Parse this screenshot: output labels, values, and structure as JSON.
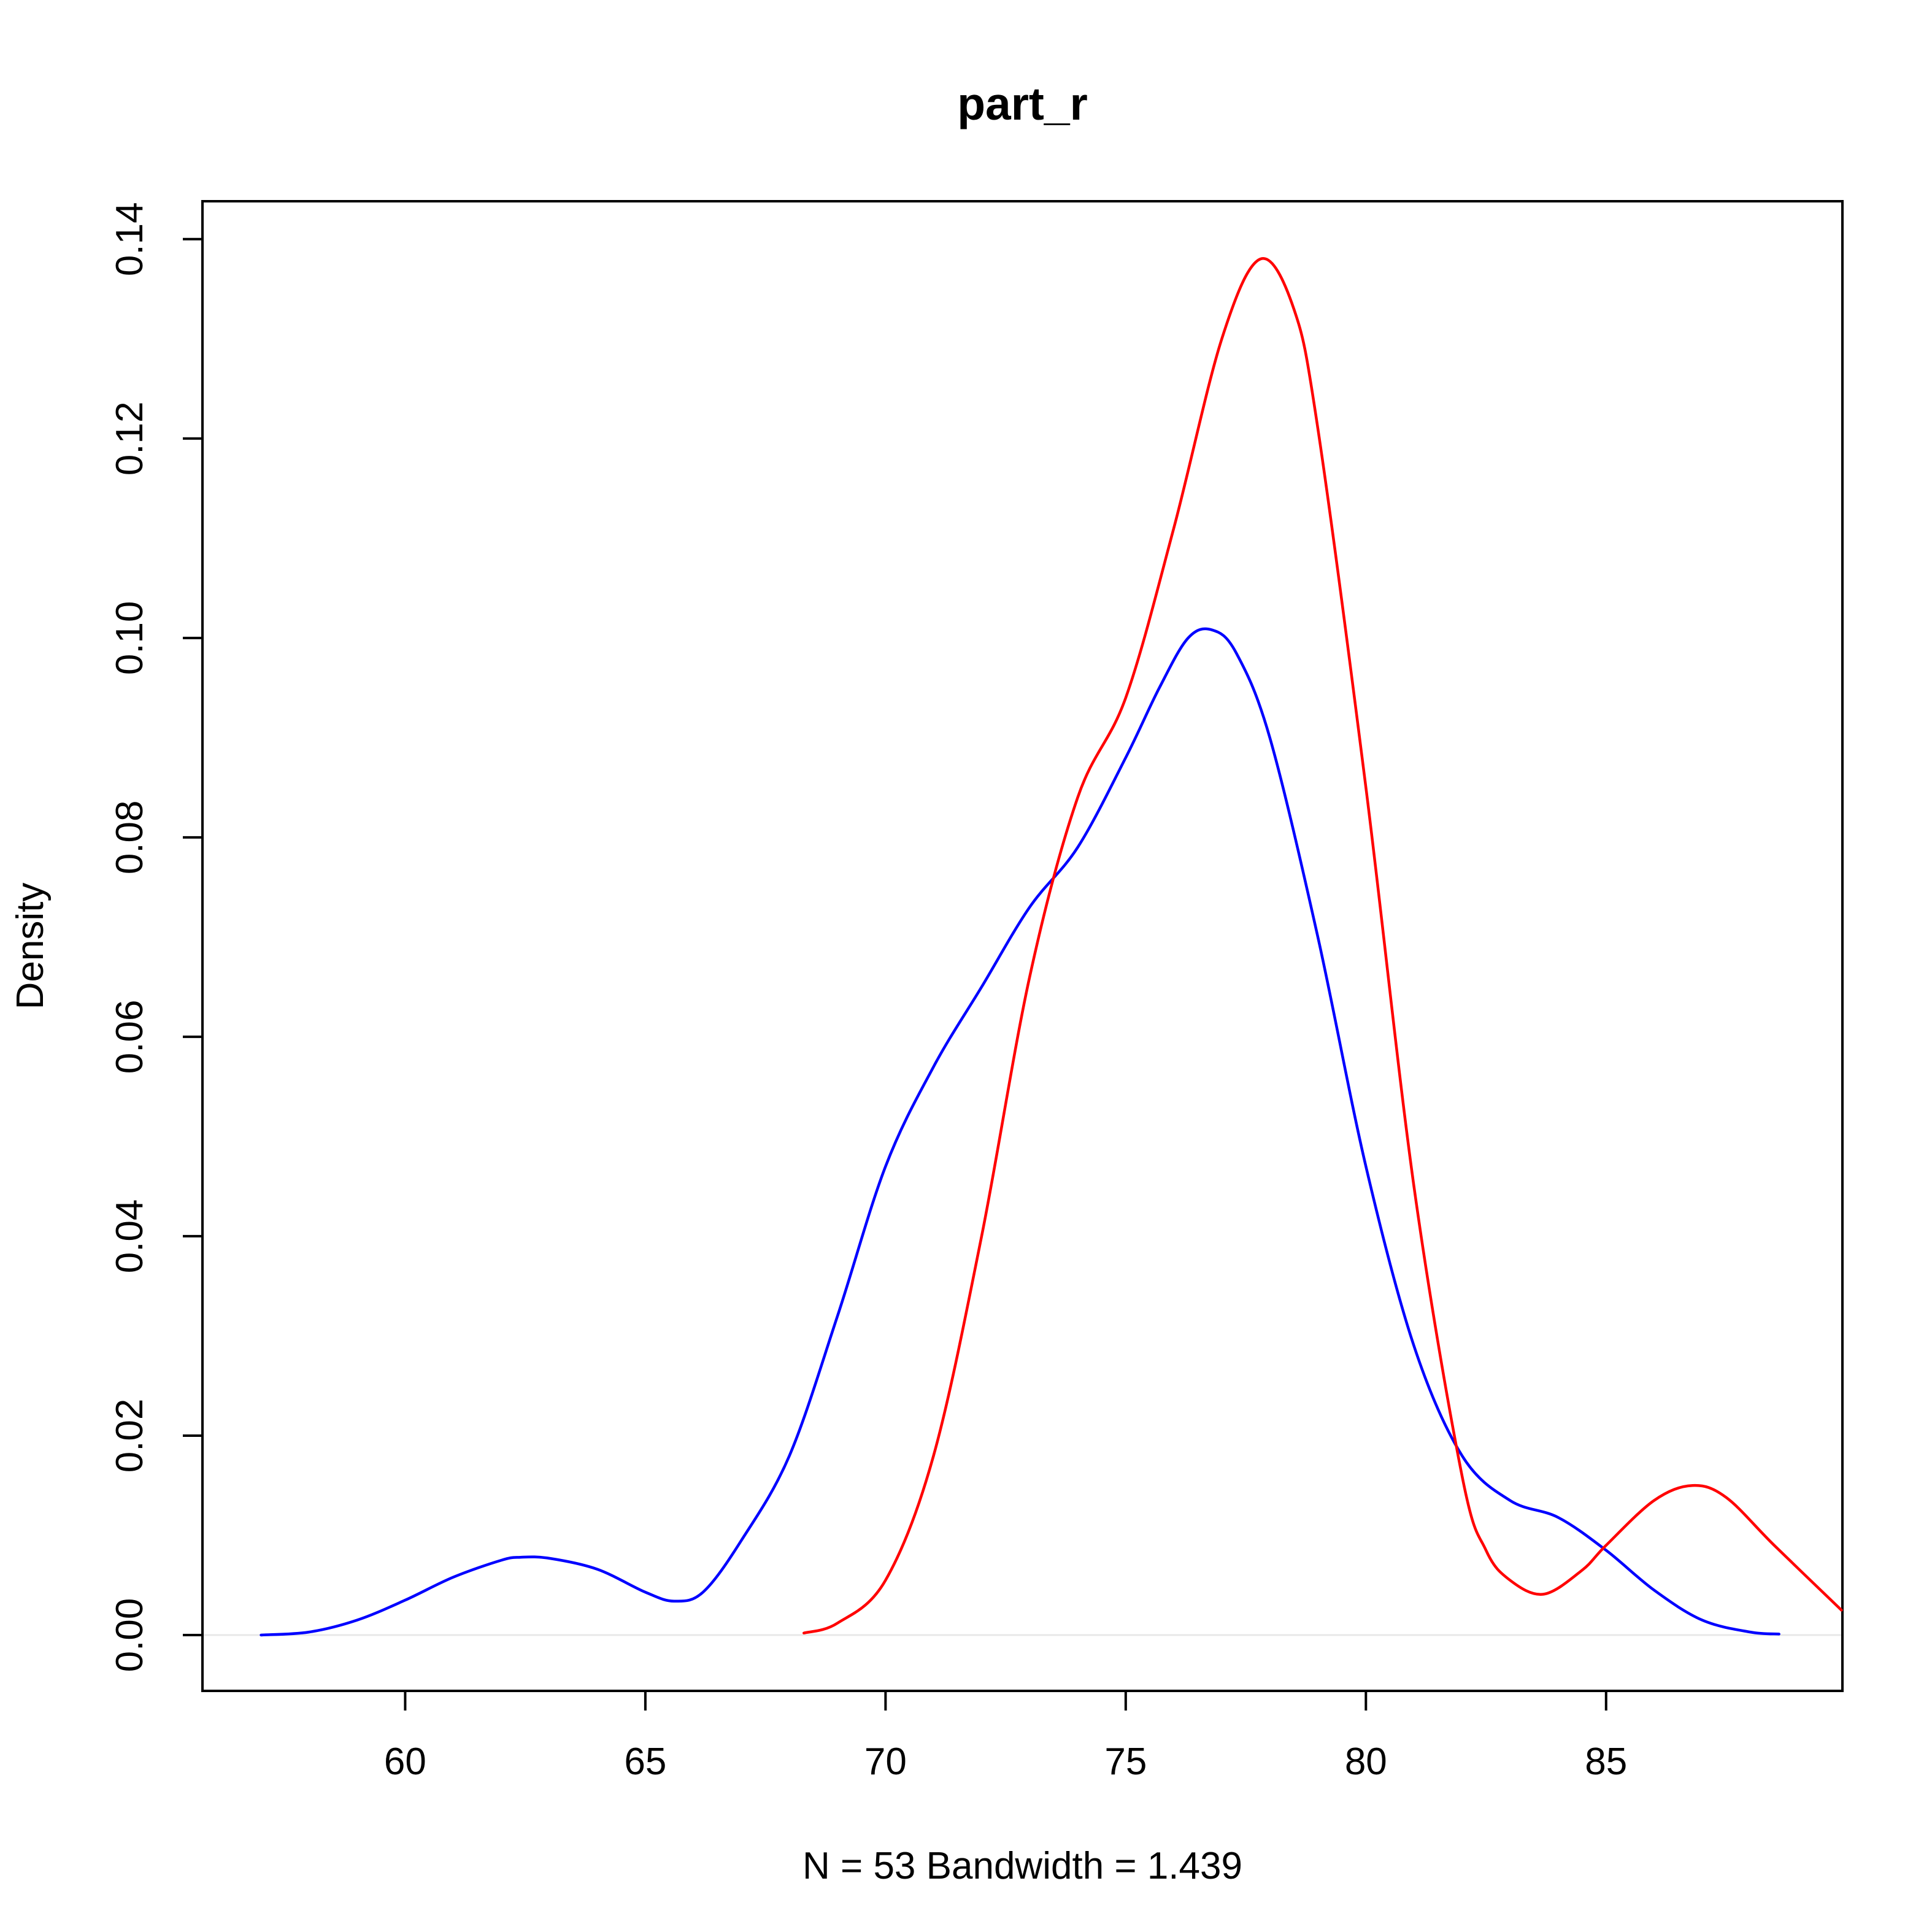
{
  "chart_data": {
    "type": "line",
    "title": "part_r",
    "xlabel": "N = 53   Bandwidth = 1.439",
    "ylabel": "Density",
    "xlim": [
      55.78,
      89.92
    ],
    "ylim": [
      -0.0056,
      0.1438
    ],
    "x_ticks": [
      60,
      65,
      70,
      75,
      80,
      85
    ],
    "x_tick_labels": [
      "60",
      "65",
      "70",
      "75",
      "80",
      "85"
    ],
    "y_ticks": [
      0.0,
      0.02,
      0.04,
      0.06,
      0.08,
      0.1,
      0.12,
      0.14
    ],
    "y_tick_labels": [
      "0.00",
      "0.02",
      "0.04",
      "0.06",
      "0.08",
      "0.10",
      "0.12",
      "0.14"
    ],
    "grid": false,
    "legend": "none",
    "series": [
      {
        "color": "#0000ff",
        "points": [
          [
            57.0,
            0.0
          ],
          [
            58.0,
            0.0003
          ],
          [
            59.0,
            0.0015
          ],
          [
            60.0,
            0.0035
          ],
          [
            61.0,
            0.0058
          ],
          [
            62.0,
            0.0075
          ],
          [
            62.4,
            0.0078
          ],
          [
            63.0,
            0.0077
          ],
          [
            64.0,
            0.0066
          ],
          [
            65.0,
            0.0043
          ],
          [
            65.6,
            0.0034
          ],
          [
            66.2,
            0.0043
          ],
          [
            67.0,
            0.0095
          ],
          [
            68.0,
            0.018
          ],
          [
            69.0,
            0.032
          ],
          [
            70.0,
            0.047
          ],
          [
            71.0,
            0.057
          ],
          [
            72.0,
            0.065
          ],
          [
            73.0,
            0.073
          ],
          [
            74.0,
            0.079
          ],
          [
            75.0,
            0.088
          ],
          [
            75.7,
            0.095
          ],
          [
            76.3,
            0.1
          ],
          [
            76.8,
            0.1008
          ],
          [
            77.3,
            0.0985
          ],
          [
            78.0,
            0.09
          ],
          [
            79.0,
            0.07
          ],
          [
            80.0,
            0.047
          ],
          [
            81.0,
            0.029
          ],
          [
            82.0,
            0.018
          ],
          [
            83.0,
            0.0135
          ],
          [
            84.0,
            0.0118
          ],
          [
            85.0,
            0.0085
          ],
          [
            86.0,
            0.0045
          ],
          [
            87.0,
            0.0015
          ],
          [
            88.0,
            0.0003
          ],
          [
            88.6,
            0.0001
          ]
        ]
      },
      {
        "color": "#ff0000",
        "points": [
          [
            68.3,
            0.0002
          ],
          [
            69.0,
            0.0012
          ],
          [
            70.0,
            0.0055
          ],
          [
            71.0,
            0.018
          ],
          [
            72.0,
            0.04
          ],
          [
            73.0,
            0.066
          ],
          [
            74.0,
            0.084
          ],
          [
            75.0,
            0.094
          ],
          [
            76.0,
            0.111
          ],
          [
            77.0,
            0.13
          ],
          [
            77.8,
            0.138
          ],
          [
            78.5,
            0.133
          ],
          [
            79.0,
            0.121
          ],
          [
            80.0,
            0.085
          ],
          [
            81.0,
            0.045
          ],
          [
            82.0,
            0.016
          ],
          [
            82.5,
            0.0085
          ],
          [
            83.0,
            0.0055
          ],
          [
            83.7,
            0.0041
          ],
          [
            84.5,
            0.0065
          ],
          [
            85.0,
            0.009
          ],
          [
            86.0,
            0.0135
          ],
          [
            86.8,
            0.015
          ],
          [
            87.5,
            0.0138
          ],
          [
            88.5,
            0.009
          ],
          [
            89.9,
            0.0025
          ]
        ]
      }
    ]
  }
}
